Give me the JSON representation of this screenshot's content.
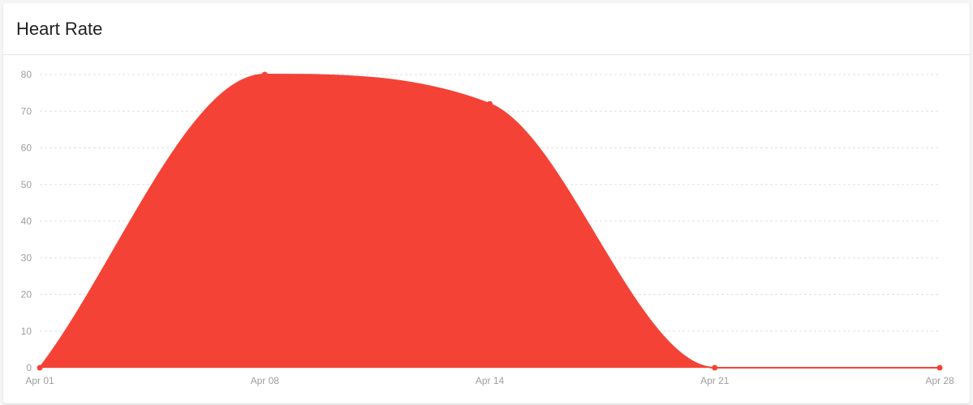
{
  "header": {
    "title": "Heart Rate"
  },
  "colors": {
    "series": "#f44336",
    "grid": "#e0e0e0",
    "axis": "#d0d0d0",
    "tick_text": "#9e9e9e"
  },
  "chart_data": {
    "type": "area",
    "title": "Heart Rate",
    "xlabel": "",
    "ylabel": "",
    "x": [
      "Apr 01",
      "Apr 08",
      "Apr 14",
      "Apr 21",
      "Apr 28"
    ],
    "series": [
      {
        "values": [
          0,
          80,
          72,
          0,
          0
        ]
      }
    ],
    "ylim": [
      0,
      80
    ],
    "yticks": [
      0,
      10,
      20,
      30,
      40,
      50,
      60,
      70,
      80
    ],
    "grid": true,
    "grid_style": "dashed-horizontal",
    "legend": "none",
    "curve": "smooth"
  }
}
